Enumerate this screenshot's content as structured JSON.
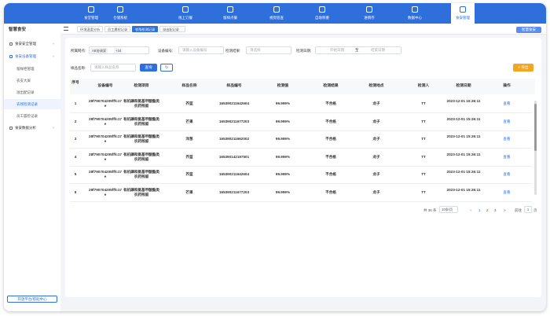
{
  "brand": "智慧食安",
  "nav": {
    "items": [
      "食堂管理",
      "仓储系统",
      "线上订餐",
      "留样点餐",
      "视觉巡查",
      "自助称重",
      "进销存",
      "数据中心",
      "食安管理"
    ]
  },
  "user_button": "智慧食安",
  "sidebar": {
    "title": "智慧食安",
    "menu": [
      {
        "label": "食安安全管理"
      },
      {
        "label": "食安设备管理",
        "children": [
          "留样柜管理",
          "农支大屏",
          "溢出配记录",
          "农残检测记录",
          "员工晨检记录"
        ]
      },
      {
        "label": "食安数据分析"
      }
    ],
    "footer": "开放平台/帮助中心"
  },
  "tabs": [
    "环境温度分析",
    "员工晨检记录",
    "农残检测记录",
    "溢出配记录"
  ],
  "filters": {
    "outlet_label": "所属网点:",
    "outlet_value": "AB协调家",
    "outlet_more": "+34",
    "device_label": "设备编号:",
    "device_placeholder": "请输入设备编号",
    "result_label": "检测结果:",
    "result_placeholder": "请选择",
    "date_label": "检测日期:",
    "date_start": "开始日期",
    "date_to": "至",
    "date_end": "结束日期",
    "sample_label": "样品名称:",
    "sample_placeholder": "请输入样品名称",
    "query": "查询",
    "export": "+ 导出"
  },
  "table": {
    "headers": [
      "序号",
      "设备编号",
      "检测项目",
      "样品名称",
      "样品编号",
      "检测值",
      "检测结果",
      "检测地点",
      "检测人",
      "检测日期",
      "操作"
    ],
    "rows": [
      [
        "1",
        "28f790704205fffc17e",
        "有机磷和氨基甲酸酯类农药残留",
        "芥蓝",
        "165390211642604",
        "99.999%",
        "不合格",
        "龙子",
        "TT",
        "2023-12-01 15:26:11",
        "查看"
      ],
      [
        "2",
        "28f790704205fffc17e",
        "有机磷和氨基甲酸酯类农药残留",
        "芒果",
        "165390211677203",
        "99.999%",
        "不合格",
        "龙子",
        "TT",
        "2023-12-01 15:26:11",
        "查看"
      ],
      [
        "3",
        "28f790704205fffc17e",
        "有机磷和氨基甲酸酯类农药残留",
        "洋葱",
        "165390211662002",
        "99.999%",
        "不合格",
        "龙子",
        "TT",
        "2023-12-01 15:26:11",
        "查看"
      ],
      [
        "4",
        "28f790704205fffc17e",
        "有机磷和氨基甲酸酯类农药残留",
        "芥蓝",
        "165390142197501",
        "99.999%",
        "不合格",
        "龙子",
        "TT",
        "2023-12-01 15:26:11",
        "查看"
      ],
      [
        "5",
        "28f790704205fffc17e",
        "有机磷和氨基甲酸酯类农药残留",
        "芥蓝",
        "165390211642604",
        "99.999%",
        "不合格",
        "龙子",
        "TT",
        "2023-12-01 15:26:11",
        "查看"
      ],
      [
        "6",
        "28f790704205fffc17e",
        "有机磷和氨基甲酸酯类农药残留",
        "芒果",
        "165390211677203",
        "99.999%",
        "不合格",
        "龙子",
        "TT",
        "2023-12-01 15:26:11",
        "查看"
      ]
    ]
  },
  "pagination": {
    "total": "共 36 条",
    "page_size": "10条/页",
    "prev": "<",
    "pages": [
      "1",
      "2",
      "3"
    ],
    "next": ">",
    "goto": "前往",
    "goto_value": "1",
    "unit": "页"
  }
}
